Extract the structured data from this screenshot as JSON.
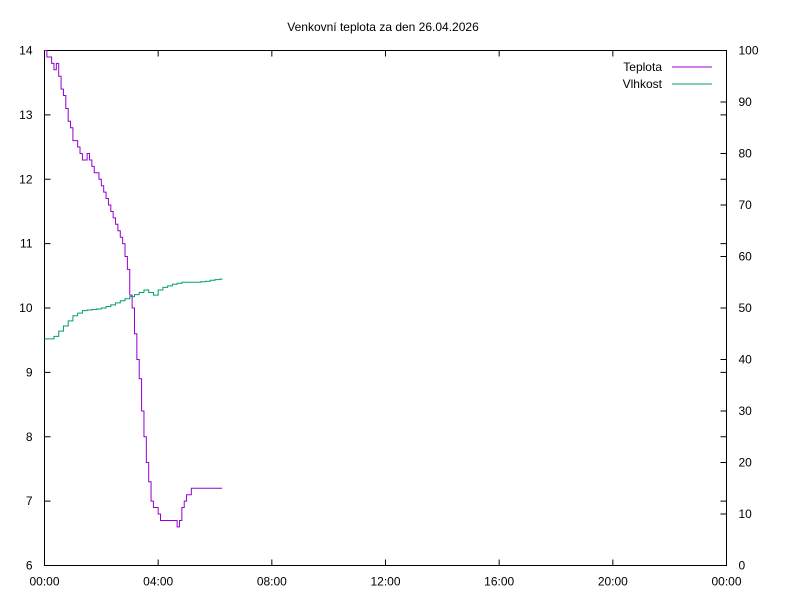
{
  "chart_data": {
    "type": "line",
    "title": "Venkovní teplota za den 26.04.2026",
    "xlabel": "",
    "ylabel": "",
    "y2label": "",
    "xlim_hours": [
      0,
      24
    ],
    "ylim": [
      6,
      14
    ],
    "y2lim": [
      0,
      100
    ],
    "x_ticks": [
      "00:00",
      "04:00",
      "08:00",
      "12:00",
      "16:00",
      "20:00",
      "00:00"
    ],
    "y_ticks": [
      "6",
      "7",
      "8",
      "9",
      "10",
      "11",
      "12",
      "13",
      "14"
    ],
    "y2_ticks": [
      "0",
      "10",
      "20",
      "30",
      "40",
      "50",
      "60",
      "70",
      "80",
      "90",
      "100"
    ],
    "grid": false,
    "legend_position": "top-right",
    "series": [
      {
        "name": "Teplota",
        "axis": "left",
        "color": "#9400d3",
        "x": [
          "00:00",
          "00:05",
          "00:10",
          "00:15",
          "00:20",
          "00:25",
          "00:30",
          "00:35",
          "00:40",
          "00:45",
          "00:50",
          "00:55",
          "01:00",
          "01:05",
          "01:10",
          "01:15",
          "01:20",
          "01:25",
          "01:30",
          "01:35",
          "01:40",
          "01:45",
          "01:50",
          "01:55",
          "02:00",
          "02:05",
          "02:10",
          "02:15",
          "02:20",
          "02:25",
          "02:30",
          "02:35",
          "02:40",
          "02:45",
          "02:50",
          "02:55",
          "03:00",
          "03:05",
          "03:10",
          "03:15",
          "03:20",
          "03:25",
          "03:30",
          "03:35",
          "03:40",
          "03:45",
          "03:50",
          "03:55",
          "04:00",
          "04:05",
          "04:10",
          "04:15",
          "04:20",
          "04:25",
          "04:30",
          "04:35",
          "04:40",
          "04:45",
          "04:50",
          "04:55",
          "05:00",
          "05:05",
          "05:10",
          "05:15",
          "05:20",
          "05:25",
          "05:30",
          "05:35",
          "05:40",
          "05:45",
          "05:50",
          "05:55",
          "06:00",
          "06:05",
          "06:10",
          "06:15"
        ],
        "values": [
          14.0,
          13.9,
          13.9,
          13.8,
          13.7,
          13.8,
          13.6,
          13.4,
          13.3,
          13.1,
          12.9,
          12.8,
          12.6,
          12.6,
          12.5,
          12.4,
          12.3,
          12.3,
          12.4,
          12.3,
          12.2,
          12.1,
          12.1,
          12.0,
          11.9,
          11.8,
          11.7,
          11.6,
          11.5,
          11.4,
          11.3,
          11.2,
          11.1,
          11.0,
          10.8,
          10.6,
          10.2,
          10.0,
          9.6,
          9.2,
          8.9,
          8.4,
          8.0,
          7.6,
          7.3,
          7.0,
          6.9,
          6.9,
          6.8,
          6.7,
          6.7,
          6.7,
          6.7,
          6.7,
          6.7,
          6.7,
          6.6,
          6.7,
          6.9,
          7.0,
          7.1,
          7.1,
          7.2,
          7.2,
          7.2,
          7.2,
          7.2,
          7.2,
          7.2,
          7.2,
          7.2,
          7.2,
          7.2,
          7.2,
          7.2,
          7.2
        ]
      },
      {
        "name": "Vlhkost",
        "axis": "right",
        "color": "#009e73",
        "x": [
          "00:00",
          "00:10",
          "00:20",
          "00:30",
          "00:40",
          "00:50",
          "01:00",
          "01:10",
          "01:20",
          "01:30",
          "01:40",
          "01:50",
          "02:00",
          "02:10",
          "02:20",
          "02:30",
          "02:40",
          "02:50",
          "03:00",
          "03:10",
          "03:20",
          "03:30",
          "03:40",
          "03:50",
          "04:00",
          "04:10",
          "04:20",
          "04:30",
          "04:40",
          "04:50",
          "05:00",
          "05:10",
          "05:20",
          "05:30",
          "05:40",
          "05:50",
          "06:00",
          "06:10",
          "06:15"
        ],
        "values": [
          44.0,
          44.0,
          44.5,
          45.5,
          46.5,
          47.5,
          48.5,
          49.0,
          49.5,
          49.6,
          49.7,
          49.8,
          50.0,
          50.3,
          50.6,
          51.0,
          51.4,
          51.8,
          52.2,
          52.6,
          53.0,
          53.5,
          53.0,
          52.5,
          53.5,
          54.0,
          54.3,
          54.6,
          54.8,
          55.0,
          55.0,
          55.0,
          55.0,
          55.1,
          55.2,
          55.4,
          55.5,
          55.6,
          55.7
        ]
      }
    ]
  }
}
